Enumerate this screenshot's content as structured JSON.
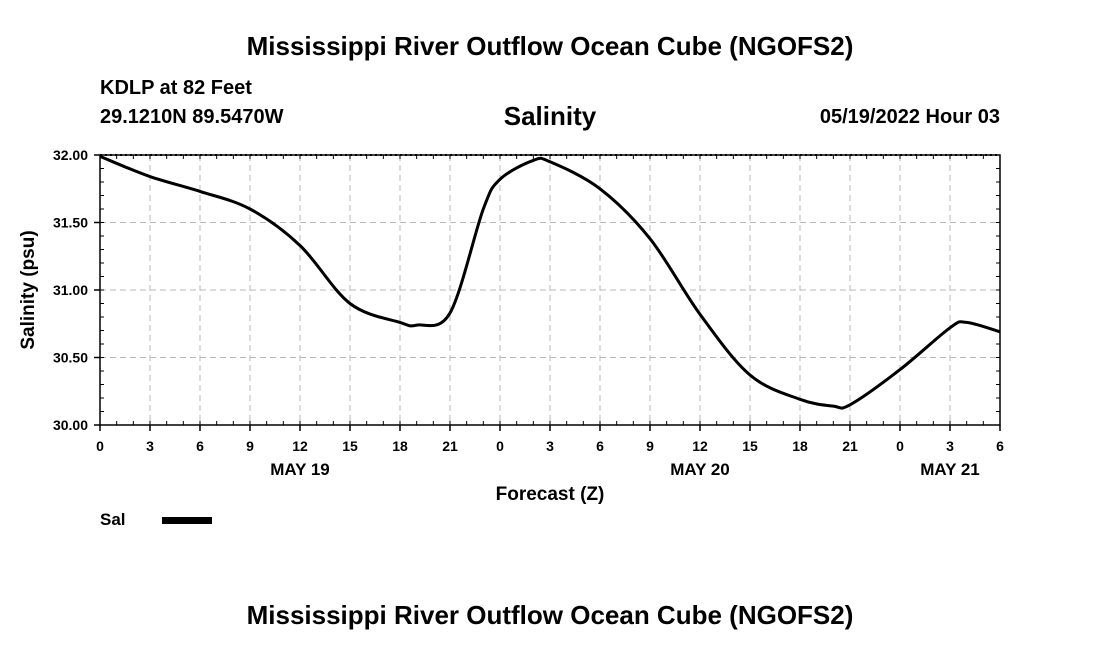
{
  "header": {
    "title": "Mississippi River Outflow Ocean Cube (NGOFS2)",
    "station": "KDLP at 82 Feet",
    "coords": "29.1210N  89.5470W",
    "variable": "Salinity",
    "datetime": "05/19/2022 Hour 03"
  },
  "legend": {
    "label": "Sal"
  },
  "footer": {
    "title": "Mississippi River Outflow Ocean Cube (NGOFS2)"
  },
  "chart_data": {
    "type": "line",
    "title": "Salinity",
    "xlabel": "Forecast (Z)",
    "ylabel": "Salinity (psu)",
    "ylim": [
      30.0,
      32.0
    ],
    "xlim": [
      0,
      54
    ],
    "grid": true,
    "yticks": [
      "30.00",
      "30.50",
      "31.00",
      "31.50",
      "32.00"
    ],
    "xticks": [
      {
        "hours": 0,
        "label": "0"
      },
      {
        "hours": 3,
        "label": "3"
      },
      {
        "hours": 6,
        "label": "6"
      },
      {
        "hours": 9,
        "label": "9"
      },
      {
        "hours": 12,
        "label": "12"
      },
      {
        "hours": 15,
        "label": "15"
      },
      {
        "hours": 18,
        "label": "18"
      },
      {
        "hours": 21,
        "label": "21"
      },
      {
        "hours": 24,
        "label": "0"
      },
      {
        "hours": 27,
        "label": "3"
      },
      {
        "hours": 30,
        "label": "6"
      },
      {
        "hours": 33,
        "label": "9"
      },
      {
        "hours": 36,
        "label": "12"
      },
      {
        "hours": 39,
        "label": "15"
      },
      {
        "hours": 42,
        "label": "18"
      },
      {
        "hours": 45,
        "label": "21"
      },
      {
        "hours": 48,
        "label": "0"
      },
      {
        "hours": 51,
        "label": "3"
      },
      {
        "hours": 54,
        "label": "6"
      }
    ],
    "day_labels": [
      {
        "hours": 12,
        "label": "MAY 19"
      },
      {
        "hours": 36,
        "label": "MAY 20"
      },
      {
        "hours": 51,
        "label": "MAY 21"
      }
    ],
    "series": [
      {
        "name": "Sal",
        "x": [
          0,
          3,
          6,
          9,
          12,
          15,
          18,
          19,
          21,
          23,
          24,
          26,
          27,
          30,
          33,
          36,
          39,
          42,
          44,
          45,
          48,
          51,
          52,
          54
        ],
        "values": [
          31.99,
          31.84,
          31.73,
          31.6,
          31.33,
          30.9,
          30.76,
          30.74,
          30.83,
          31.6,
          31.82,
          31.96,
          31.95,
          31.75,
          31.38,
          30.82,
          30.37,
          30.19,
          30.14,
          30.15,
          30.41,
          30.72,
          30.76,
          30.69
        ]
      }
    ]
  }
}
